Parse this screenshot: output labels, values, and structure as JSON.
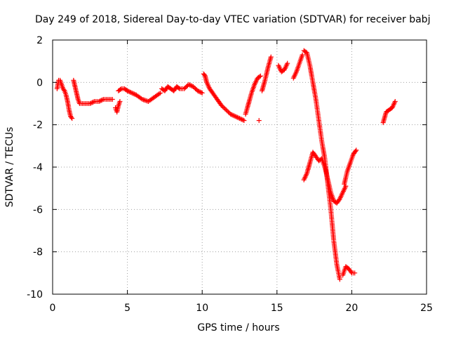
{
  "chart_data": {
    "type": "scatter",
    "title": "Day 249 of 2018, Sidereal Day-to-day VTEC variation (SDTVAR) for receiver babj",
    "xlabel": "GPS time / hours",
    "ylabel": "SDTVAR / TECUs",
    "xlim": [
      0,
      25
    ],
    "ylim": [
      -10,
      2
    ],
    "xticks": [
      0,
      5,
      10,
      15,
      20,
      25
    ],
    "yticks": [
      -10,
      -8,
      -6,
      -4,
      -2,
      0,
      2
    ],
    "xtick_labels": [
      "0",
      "5",
      "10",
      "15",
      "20",
      "25"
    ],
    "ytick_labels": [
      "-10",
      "-8",
      "-6",
      "-4",
      "-2",
      "0",
      "2"
    ],
    "grid": true,
    "marker": "plus",
    "color": "#ff0000",
    "series": [
      {
        "name": "SDTVAR",
        "segments": [
          {
            "x": [
              0.3,
              0.4,
              0.5,
              0.6,
              0.7,
              0.8,
              0.9,
              1.0,
              1.1,
              1.2,
              1.3
            ],
            "y": [
              -0.3,
              0.1,
              0.1,
              -0.1,
              -0.3,
              -0.4,
              -0.6,
              -0.9,
              -1.3,
              -1.6,
              -1.7
            ]
          },
          {
            "x": [
              1.4,
              1.5,
              1.6,
              1.7,
              1.8,
              2.0,
              2.2,
              2.5,
              2.8,
              3.1,
              3.4,
              3.7,
              4.0
            ],
            "y": [
              0.1,
              -0.2,
              -0.5,
              -0.8,
              -1.0,
              -1.0,
              -1.0,
              -1.0,
              -0.9,
              -0.9,
              -0.8,
              -0.8,
              -0.8
            ]
          },
          {
            "x": [
              4.2,
              4.3,
              4.4,
              4.5
            ],
            "y": [
              -1.2,
              -1.4,
              -1.1,
              -0.9
            ]
          },
          {
            "x": [
              4.4,
              4.6,
              4.8,
              5.0,
              5.3,
              5.6,
              6.0,
              6.4,
              6.8,
              7.2
            ],
            "y": [
              -0.4,
              -0.3,
              -0.3,
              -0.4,
              -0.5,
              -0.6,
              -0.8,
              -0.9,
              -0.7,
              -0.5
            ]
          },
          {
            "x": [
              7.3,
              7.5,
              7.7,
              7.9,
              8.1,
              8.3,
              8.5,
              8.8,
              9.1,
              9.4,
              9.7,
              10.0
            ],
            "y": [
              -0.3,
              -0.4,
              -0.2,
              -0.3,
              -0.4,
              -0.2,
              -0.3,
              -0.3,
              -0.1,
              -0.2,
              -0.4,
              -0.5
            ]
          },
          {
            "x": [
              10.1,
              10.2,
              10.3,
              10.5,
              10.7,
              10.9,
              11.1,
              11.3,
              11.6,
              11.9,
              12.2,
              12.5,
              12.8
            ],
            "y": [
              0.4,
              0.3,
              0.0,
              -0.3,
              -0.5,
              -0.7,
              -0.9,
              -1.1,
              -1.3,
              -1.5,
              -1.6,
              -1.7,
              -1.8
            ]
          },
          {
            "x": [
              12.9,
              13.1,
              13.3,
              13.5,
              13.7,
              13.9
            ],
            "y": [
              -1.5,
              -1.0,
              -0.5,
              -0.1,
              0.2,
              0.3
            ]
          },
          {
            "x": [
              13.8
            ],
            "y": [
              -1.8
            ]
          },
          {
            "x": [
              14.0,
              14.2,
              14.4,
              14.6
            ],
            "y": [
              -0.4,
              0.1,
              0.7,
              1.2
            ]
          },
          {
            "x": [
              15.1,
              15.3,
              15.5,
              15.7
            ],
            "y": [
              0.8,
              0.5,
              0.6,
              0.9
            ]
          },
          {
            "x": [
              16.1,
              16.3,
              16.5,
              16.7
            ],
            "y": [
              0.2,
              0.5,
              0.9,
              1.3
            ]
          },
          {
            "x": [
              16.8,
              17.0,
              17.2,
              17.4,
              17.6,
              17.8,
              18.0,
              18.2,
              18.4,
              18.6,
              18.8,
              19.0,
              19.2
            ],
            "y": [
              1.5,
              1.4,
              0.8,
              0.0,
              -0.8,
              -1.8,
              -2.8,
              -3.6,
              -4.8,
              -6.0,
              -7.5,
              -8.6,
              -9.3
            ]
          },
          {
            "x": [
              16.8,
              17.0,
              17.2,
              17.4,
              17.6,
              17.8,
              18.0,
              18.2,
              18.4,
              18.6,
              18.8,
              19.0,
              19.2,
              19.4,
              19.6
            ],
            "y": [
              -4.6,
              -4.3,
              -3.8,
              -3.3,
              -3.5,
              -3.7,
              -3.6,
              -4.0,
              -4.6,
              -5.2,
              -5.6,
              -5.7,
              -5.5,
              -5.2,
              -4.9
            ]
          },
          {
            "x": [
              19.4,
              19.6,
              19.8,
              20.0,
              20.2
            ],
            "y": [
              -9.1,
              -8.7,
              -8.8,
              -9.0,
              -9.0
            ]
          },
          {
            "x": [
              19.5,
              19.7,
              19.9,
              20.1,
              20.3
            ],
            "y": [
              -4.8,
              -4.2,
              -3.8,
              -3.4,
              -3.2
            ]
          },
          {
            "x": [
              22.1,
              22.3,
              22.5,
              22.7,
              22.9
            ],
            "y": [
              -1.9,
              -1.4,
              -1.3,
              -1.2,
              -0.9
            ]
          }
        ]
      }
    ]
  }
}
